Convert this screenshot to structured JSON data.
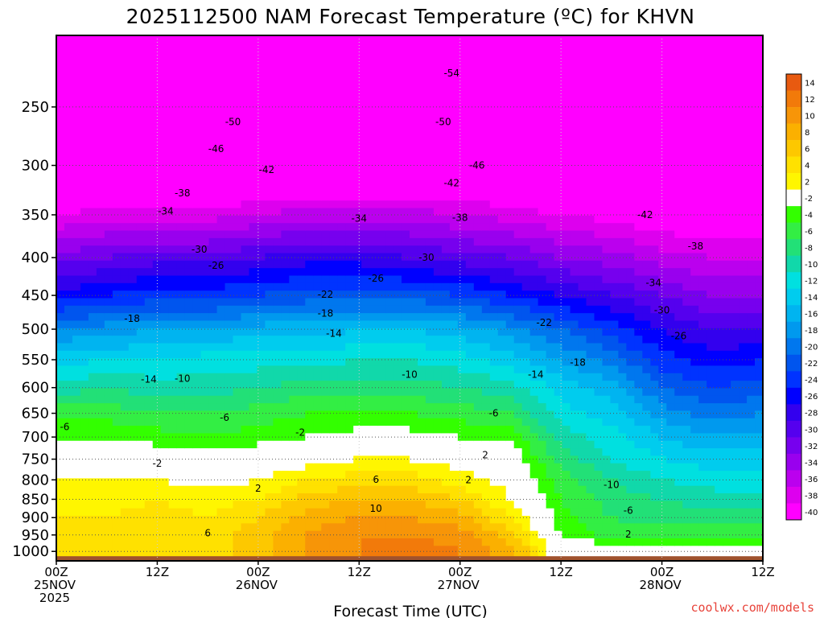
{
  "chart_data": {
    "type": "heatmap",
    "title": "2025112500 NAM Forecast Temperature (ºC) for KHVN",
    "xlabel": "Forecast Time (UTC)",
    "ylabel": "",
    "credit": "coolwx.com/models",
    "x_ticks": [
      {
        "hours": 0,
        "lines": [
          "00Z",
          "25NOV",
          "2025"
        ]
      },
      {
        "hours": 12,
        "lines": [
          "12Z"
        ]
      },
      {
        "hours": 24,
        "lines": [
          "00Z",
          "26NOV"
        ]
      },
      {
        "hours": 36,
        "lines": [
          "12Z"
        ]
      },
      {
        "hours": 48,
        "lines": [
          "00Z",
          "27NOV"
        ]
      },
      {
        "hours": 60,
        "lines": [
          "12Z"
        ]
      },
      {
        "hours": 72,
        "lines": [
          "00Z",
          "28NOV"
        ]
      },
      {
        "hours": 84,
        "lines": [
          "12Z"
        ]
      }
    ],
    "xlim_hours": [
      0,
      84
    ],
    "y_ticks_hPa": [
      250,
      300,
      350,
      400,
      450,
      500,
      550,
      600,
      650,
      700,
      750,
      800,
      850,
      900,
      950,
      1000
    ],
    "ylim_hPa": [
      200,
      1030
    ],
    "y_scale": "log-pressure",
    "grid": true,
    "colorbar": {
      "ticks": [
        14,
        12,
        10,
        8,
        6,
        4,
        2,
        -2,
        -4,
        -6,
        -8,
        -10,
        -12,
        -14,
        -16,
        -18,
        -20,
        -22,
        -24,
        -26,
        -28,
        -30,
        -32,
        -34,
        -36,
        -38,
        -40
      ],
      "colors": [
        "#e85a10",
        "#f27a0a",
        "#f79508",
        "#fbb000",
        "#fdc800",
        "#ffe100",
        "#fff600",
        "#ffffff",
        "#33ff00",
        "#33ee44",
        "#22e077",
        "#11d8aa",
        "#00e0e0",
        "#00ccee",
        "#00b4f0",
        "#0099ee",
        "#0077ee",
        "#0055ee",
        "#0033ff",
        "#0000ff",
        "#3300ee",
        "#5500ee",
        "#7700ee",
        "#9900ee",
        "#bb00ee",
        "#dd00ee",
        "#ff00ff"
      ]
    },
    "temperature_profile_hPa": [
      200,
      250,
      300,
      350,
      400,
      450,
      500,
      550,
      600,
      650,
      700,
      750,
      800,
      850,
      900,
      950,
      1000
    ],
    "temperature_columns": [
      {
        "hours": 0,
        "temps": [
          -58,
          -52,
          -45,
          -38,
          -31,
          -25,
          -18,
          -13,
          -9,
          -5,
          -2,
          1,
          2,
          3,
          4,
          5,
          4
        ]
      },
      {
        "hours": 6,
        "temps": [
          -58,
          -52,
          -45,
          -37,
          -30,
          -24,
          -17,
          -12,
          -8,
          -5,
          -2,
          0,
          2,
          3,
          4,
          4,
          4
        ]
      },
      {
        "hours": 12,
        "temps": [
          -57,
          -51,
          -44,
          -37,
          -29,
          -23,
          -16,
          -12,
          -9,
          -6,
          -3,
          0,
          2,
          4,
          5,
          5,
          5
        ]
      },
      {
        "hours": 18,
        "temps": [
          -57,
          -51,
          -44,
          -37,
          -29,
          -23,
          -16,
          -11,
          -9,
          -6,
          -4,
          -1,
          1,
          3,
          4,
          5,
          5
        ]
      },
      {
        "hours": 24,
        "temps": [
          -56,
          -50,
          -43,
          -36,
          -28,
          -22,
          -15,
          -11,
          -8,
          -5,
          -3,
          0,
          2,
          4,
          6,
          7,
          7
        ]
      },
      {
        "hours": 30,
        "temps": [
          -56,
          -50,
          -43,
          -35,
          -27,
          -21,
          -15,
          -11,
          -7,
          -4,
          -2,
          1,
          4,
          7,
          9,
          10,
          10
        ]
      },
      {
        "hours": 36,
        "temps": [
          -56,
          -50,
          -43,
          -35,
          -27,
          -21,
          -14,
          -10,
          -7,
          -4,
          -1,
          2,
          5,
          8,
          10,
          12,
          12
        ]
      },
      {
        "hours": 42,
        "temps": [
          -56,
          -50,
          -43,
          -35,
          -28,
          -21,
          -14,
          -10,
          -7,
          -4,
          -1,
          2,
          5,
          8,
          10,
          12,
          13
        ]
      },
      {
        "hours": 48,
        "temps": [
          -57,
          -50,
          -43,
          -36,
          -29,
          -22,
          -15,
          -11,
          -8,
          -5,
          -2,
          1,
          3,
          6,
          9,
          11,
          12
        ]
      },
      {
        "hours": 54,
        "temps": [
          -57,
          -50,
          -43,
          -37,
          -30,
          -24,
          -17,
          -13,
          -9,
          -6,
          -3,
          0,
          1,
          2,
          4,
          7,
          9
        ]
      },
      {
        "hours": 60,
        "temps": [
          -57,
          -51,
          -44,
          -38,
          -32,
          -26,
          -20,
          -16,
          -13,
          -11,
          -9,
          -7,
          -5,
          -4,
          -3,
          -2,
          0
        ]
      },
      {
        "hours": 66,
        "temps": [
          -58,
          -52,
          -45,
          -39,
          -33,
          -28,
          -23,
          -19,
          -15,
          -13,
          -11,
          -10,
          -8,
          -7,
          -6,
          -5,
          1
        ]
      },
      {
        "hours": 72,
        "temps": [
          -59,
          -52,
          -46,
          -40,
          -35,
          -30,
          -26,
          -23,
          -20,
          -17,
          -14,
          -12,
          -10,
          -8,
          -7,
          -5,
          0
        ]
      },
      {
        "hours": 78,
        "temps": [
          -59,
          -53,
          -47,
          -41,
          -36,
          -32,
          -28,
          -25,
          -22,
          -19,
          -16,
          -13,
          -11,
          -9,
          -7,
          -5,
          -1
        ]
      },
      {
        "hours": 84,
        "temps": [
          -59,
          -53,
          -47,
          -41,
          -36,
          -32,
          -28,
          -24,
          -21,
          -18,
          -15,
          -13,
          -11,
          -9,
          -7,
          -5,
          -1
        ]
      }
    ],
    "contour_labels": [
      {
        "text": "-54",
        "hours": 47,
        "p": 225
      },
      {
        "text": "-50",
        "hours": 21,
        "p": 262
      },
      {
        "text": "-50",
        "hours": 46,
        "p": 262
      },
      {
        "text": "-46",
        "hours": 19,
        "p": 285
      },
      {
        "text": "-46",
        "hours": 50,
        "p": 300
      },
      {
        "text": "-42",
        "hours": 25,
        "p": 304
      },
      {
        "text": "-42",
        "hours": 47,
        "p": 317
      },
      {
        "text": "-42",
        "hours": 70,
        "p": 350
      },
      {
        "text": "-38",
        "hours": 15,
        "p": 327
      },
      {
        "text": "-38",
        "hours": 48,
        "p": 353
      },
      {
        "text": "-38",
        "hours": 76,
        "p": 386
      },
      {
        "text": "-34",
        "hours": 13,
        "p": 346
      },
      {
        "text": "-34",
        "hours": 36,
        "p": 354
      },
      {
        "text": "-34",
        "hours": 71,
        "p": 433
      },
      {
        "text": "-30",
        "hours": 17,
        "p": 390
      },
      {
        "text": "-30",
        "hours": 44,
        "p": 400
      },
      {
        "text": "-30",
        "hours": 72,
        "p": 471
      },
      {
        "text": "-26",
        "hours": 19,
        "p": 410
      },
      {
        "text": "-26",
        "hours": 38,
        "p": 427
      },
      {
        "text": "-26",
        "hours": 74,
        "p": 511
      },
      {
        "text": "-22",
        "hours": 32,
        "p": 449
      },
      {
        "text": "-22",
        "hours": 58,
        "p": 490
      },
      {
        "text": "-18",
        "hours": 9,
        "p": 484
      },
      {
        "text": "-18",
        "hours": 32,
        "p": 476
      },
      {
        "text": "-18",
        "hours": 62,
        "p": 555
      },
      {
        "text": "-14",
        "hours": 11,
        "p": 585
      },
      {
        "text": "-14",
        "hours": 33,
        "p": 507
      },
      {
        "text": "-14",
        "hours": 57,
        "p": 576
      },
      {
        "text": "-10",
        "hours": 15,
        "p": 583
      },
      {
        "text": "-10",
        "hours": 42,
        "p": 576
      },
      {
        "text": "-10",
        "hours": 66,
        "p": 813
      },
      {
        "text": "-6",
        "hours": 1,
        "p": 678
      },
      {
        "text": "-6",
        "hours": 20,
        "p": 659
      },
      {
        "text": "-6",
        "hours": 52,
        "p": 650
      },
      {
        "text": "-6",
        "hours": 68,
        "p": 880
      },
      {
        "text": "-2",
        "hours": 29,
        "p": 690
      },
      {
        "text": "-2",
        "hours": 12,
        "p": 760
      },
      {
        "text": "2",
        "hours": 51,
        "p": 740
      },
      {
        "text": "2",
        "hours": 49,
        "p": 800
      },
      {
        "text": "2",
        "hours": 24,
        "p": 822
      },
      {
        "text": "2",
        "hours": 68,
        "p": 948
      },
      {
        "text": "6",
        "hours": 38,
        "p": 799
      },
      {
        "text": "6",
        "hours": 18,
        "p": 944
      },
      {
        "text": "10",
        "hours": 38,
        "p": 875
      }
    ]
  }
}
